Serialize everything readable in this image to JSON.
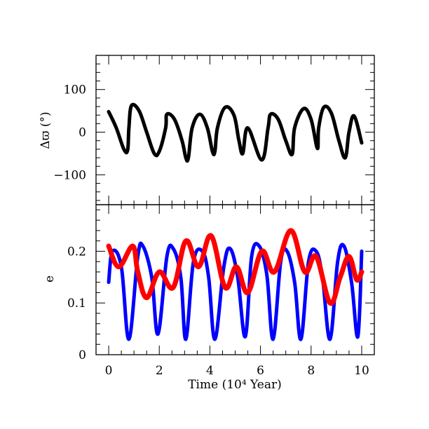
{
  "chart_data": [
    {
      "type": "line",
      "ylabel": "Δϖ (°)",
      "xlim": [
        -0.5,
        10.5
      ],
      "ylim": [
        -170,
        180
      ],
      "yticks": [
        -100,
        0,
        100
      ],
      "ytick_labels": [
        "−100",
        "0",
        "100"
      ],
      "grid": false,
      "series": [
        {
          "color": "#000000",
          "x": [
            0.0,
            0.3,
            0.6,
            0.75,
            0.8,
            0.9,
            1.2,
            1.5,
            1.8,
            2.0,
            2.25,
            2.3,
            2.6,
            2.9,
            3.05,
            3.15,
            3.3,
            3.6,
            3.9,
            4.1,
            4.2,
            4.3,
            4.6,
            4.95,
            5.15,
            5.3,
            5.5,
            6.05,
            6.3,
            6.4,
            6.7,
            7.0,
            7.25,
            7.35,
            7.7,
            8.0,
            8.25,
            8.3,
            8.5,
            8.8,
            9.1,
            9.35,
            9.5,
            9.7,
            10.0
          ],
          "y": [
            48,
            10,
            -40,
            -42,
            10,
            62,
            50,
            0,
            -50,
            -45,
            10,
            42,
            30,
            -20,
            -60,
            -60,
            10,
            42,
            10,
            -45,
            -45,
            10,
            58,
            40,
            -20,
            -50,
            10,
            -65,
            10,
            42,
            30,
            -20,
            -52,
            10,
            55,
            30,
            -38,
            10,
            58,
            45,
            -20,
            -60,
            0,
            38,
            -25
          ]
        }
      ]
    },
    {
      "type": "line",
      "xlabel": "Time (10⁴ Year)",
      "ylabel": "e",
      "xlim": [
        -0.5,
        10.5
      ],
      "ylim": [
        0,
        0.29
      ],
      "xticks": [
        0,
        2,
        4,
        6,
        8,
        10
      ],
      "xtick_labels": [
        "0",
        "2",
        "4",
        "6",
        "8",
        "10"
      ],
      "yticks": [
        0,
        0.1,
        0.2
      ],
      "ytick_labels": [
        "0",
        "0.1",
        "0.2"
      ],
      "grid": false,
      "series": [
        {
          "color": "#0000ff",
          "x": [
            0.0,
            0.15,
            0.5,
            0.8,
            1.15,
            1.35,
            1.7,
            1.95,
            2.3,
            2.55,
            2.85,
            3.05,
            3.35,
            3.7,
            3.95,
            4.2,
            4.55,
            4.8,
            5.1,
            5.4,
            5.65,
            5.95,
            6.25,
            6.5,
            6.8,
            7.05,
            7.35,
            7.6,
            7.9,
            8.2,
            8.45,
            8.75,
            9.05,
            9.3,
            9.6,
            9.85,
            10.0
          ],
          "y": [
            0.14,
            0.2,
            0.17,
            0.03,
            0.19,
            0.21,
            0.15,
            0.04,
            0.19,
            0.205,
            0.15,
            0.03,
            0.18,
            0.2,
            0.15,
            0.03,
            0.17,
            0.205,
            0.15,
            0.035,
            0.19,
            0.21,
            0.155,
            0.03,
            0.18,
            0.2,
            0.14,
            0.03,
            0.18,
            0.2,
            0.15,
            0.03,
            0.18,
            0.21,
            0.14,
            0.035,
            0.2
          ]
        },
        {
          "color": "#ff0000",
          "x": [
            0.0,
            0.4,
            0.95,
            1.15,
            1.5,
            2.0,
            2.55,
            3.05,
            3.55,
            4.05,
            4.6,
            5.05,
            5.5,
            6.05,
            6.55,
            7.2,
            7.75,
            8.2,
            8.75,
            9.15,
            9.5,
            9.8,
            10.0
          ],
          "y": [
            0.21,
            0.17,
            0.21,
            0.16,
            0.11,
            0.16,
            0.13,
            0.22,
            0.17,
            0.23,
            0.13,
            0.17,
            0.12,
            0.2,
            0.16,
            0.24,
            0.16,
            0.19,
            0.1,
            0.15,
            0.19,
            0.145,
            0.16
          ]
        }
      ]
    }
  ]
}
